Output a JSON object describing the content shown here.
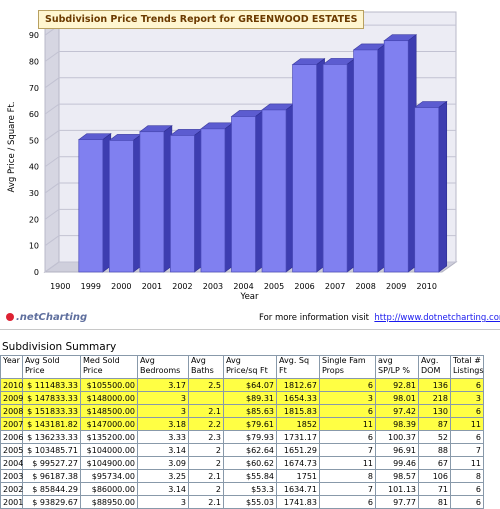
{
  "chart_data": {
    "type": "bar",
    "title": "Subdivision Price Trends Report for GREENWOOD ESTATES",
    "xlabel": "Year",
    "ylabel": "Avg Price / Square Ft.",
    "categories": [
      "1900",
      "1999",
      "2000",
      "2001",
      "2002",
      "2003",
      "2004",
      "2005",
      "2006",
      "2007",
      "2008",
      "2009",
      "2010"
    ],
    "values": [
      0,
      50.3,
      50.0,
      53.3,
      51.9,
      54.4,
      59.1,
      61.6,
      78.8,
      78.9,
      84.4,
      87.9,
      62.5
    ],
    "yticks": [
      0,
      10,
      20,
      30,
      40,
      50,
      60,
      70,
      80,
      90
    ],
    "ylim": [
      0,
      95
    ],
    "grid": true,
    "bar_color": "#8080f0",
    "background_color": "#ececf4"
  },
  "credit": {
    "logo_text": ".netCharting",
    "info_label": "For more information visit",
    "info_link": "http://www.dotnetcharting.com"
  },
  "summary": {
    "title": "Subdivision Summary",
    "headers": [
      "Year",
      "Avg Sold Price",
      "Med Sold Price",
      "Avg Bedrooms",
      "Avg Baths",
      "Avg Price/sq Ft",
      "Avg. Sq Ft",
      "Single Fam Props",
      "avg SP/LP %",
      "Avg. DOM",
      "Total # Listings"
    ],
    "rows": [
      {
        "highlight": true,
        "cells": [
          "2010",
          "$ 111483.33",
          "$105500.00",
          "3.17",
          "2.5",
          "$64.07",
          "1812.67",
          "6",
          "92.81",
          "136",
          "6"
        ]
      },
      {
        "highlight": true,
        "cells": [
          "2009",
          "$ 147833.33",
          "$148000.00",
          "3",
          "",
          "$89.31",
          "1654.33",
          "3",
          "98.01",
          "218",
          "3"
        ]
      },
      {
        "highlight": true,
        "cells": [
          "2008",
          "$ 151833.33",
          "$148500.00",
          "3",
          "2.1",
          "$85.63",
          "1815.83",
          "6",
          "97.42",
          "130",
          "6"
        ]
      },
      {
        "highlight": true,
        "cells": [
          "2007",
          "$ 143181.82",
          "$147000.00",
          "3.18",
          "2.2",
          "$79.61",
          "1852",
          "11",
          "98.39",
          "87",
          "11"
        ]
      },
      {
        "highlight": false,
        "cells": [
          "2006",
          "$ 136233.33",
          "$135200.00",
          "3.33",
          "2.3",
          "$79.93",
          "1731.17",
          "6",
          "100.37",
          "52",
          "6"
        ]
      },
      {
        "highlight": false,
        "cells": [
          "2005",
          "$ 103485.71",
          "$104000.00",
          "3.14",
          "2",
          "$62.64",
          "1651.29",
          "7",
          "96.91",
          "88",
          "7"
        ]
      },
      {
        "highlight": false,
        "cells": [
          "2004",
          "$ 99527.27",
          "$104900.00",
          "3.09",
          "2",
          "$60.62",
          "1674.73",
          "11",
          "99.46",
          "67",
          "11"
        ]
      },
      {
        "highlight": false,
        "cells": [
          "2003",
          "$ 96187.38",
          "$95734.00",
          "3.25",
          "2.1",
          "$55.84",
          "1751",
          "8",
          "98.57",
          "106",
          "8"
        ]
      },
      {
        "highlight": false,
        "cells": [
          "2002",
          "$ 85844.29",
          "$86000.00",
          "3.14",
          "2",
          "$53.3",
          "1634.71",
          "7",
          "101.13",
          "71",
          "6"
        ]
      },
      {
        "highlight": false,
        "cells": [
          "2001",
          "$ 93829.67",
          "$88950.00",
          "3",
          "2.1",
          "$55.03",
          "1741.83",
          "6",
          "97.77",
          "81",
          "6"
        ]
      }
    ]
  }
}
